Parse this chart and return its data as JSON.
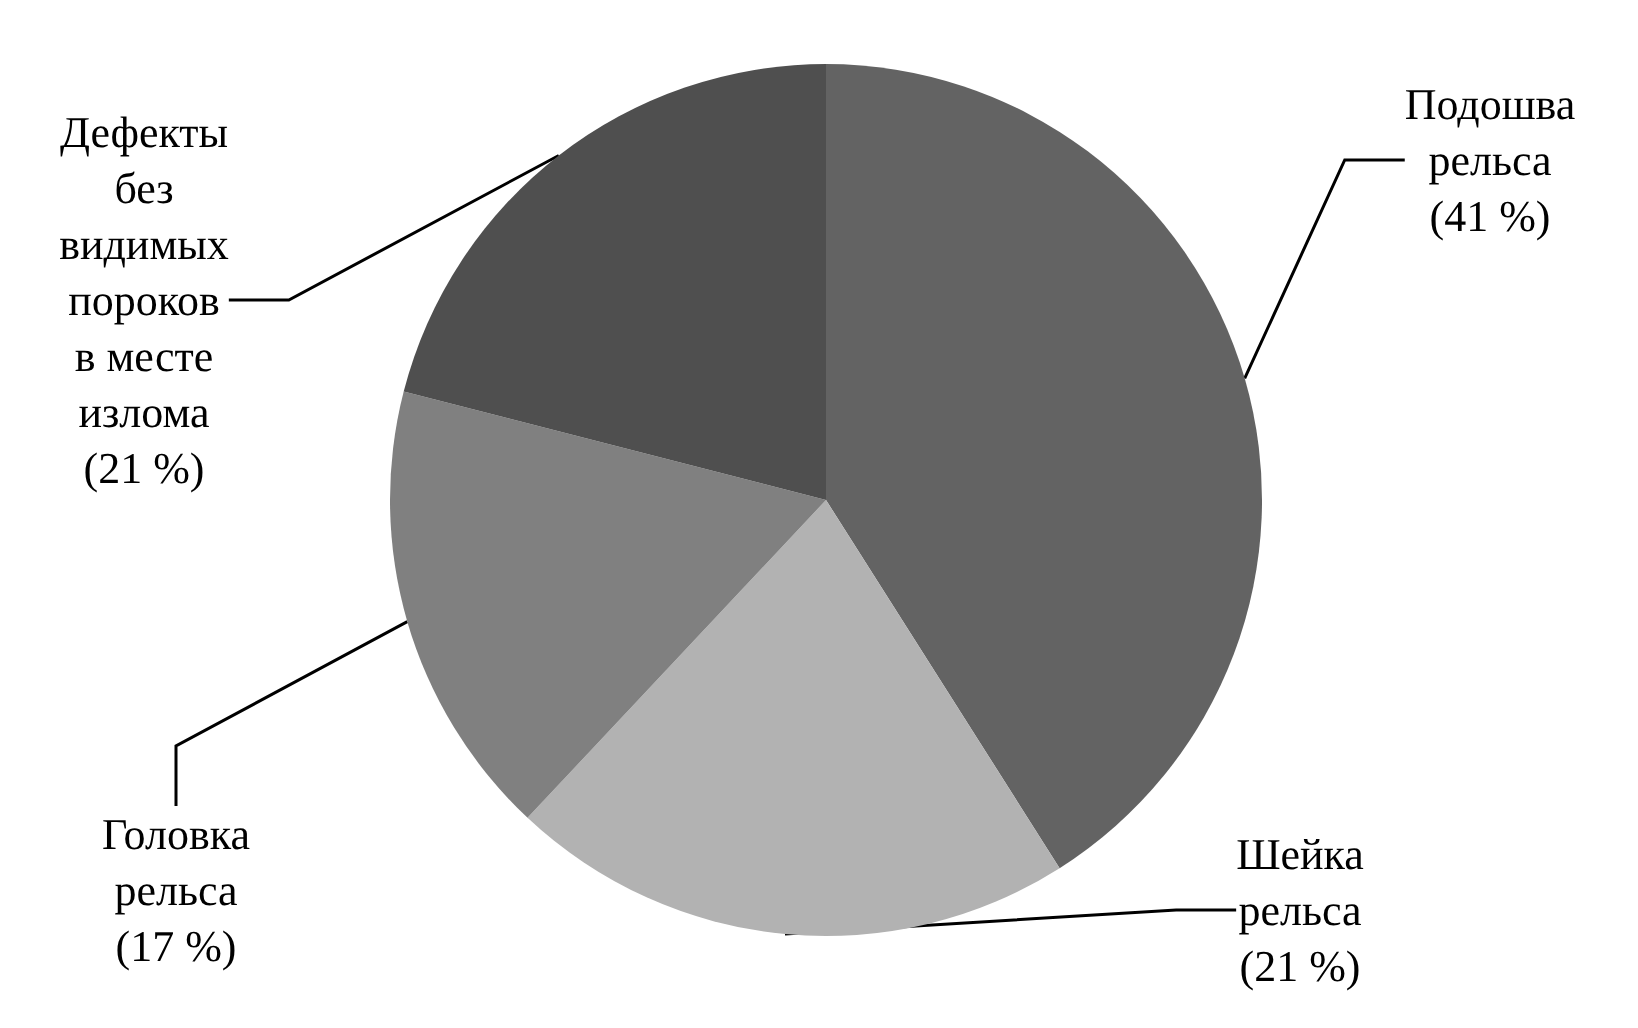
{
  "chart_data": {
    "type": "pie",
    "categories": [
      "Подошва рельса",
      "Шейка рельса",
      "Головка рельса",
      "Дефекты без видимых пороков в месте излома"
    ],
    "values": [
      41,
      21,
      17,
      21
    ],
    "colors": [
      "#636363",
      "#b2b2b2",
      "#808080",
      "#4f4f4f"
    ],
    "value_labels": [
      "(41 %)",
      "(21 %)",
      "(17 %)",
      "(21 %)"
    ],
    "legend": false
  }
}
